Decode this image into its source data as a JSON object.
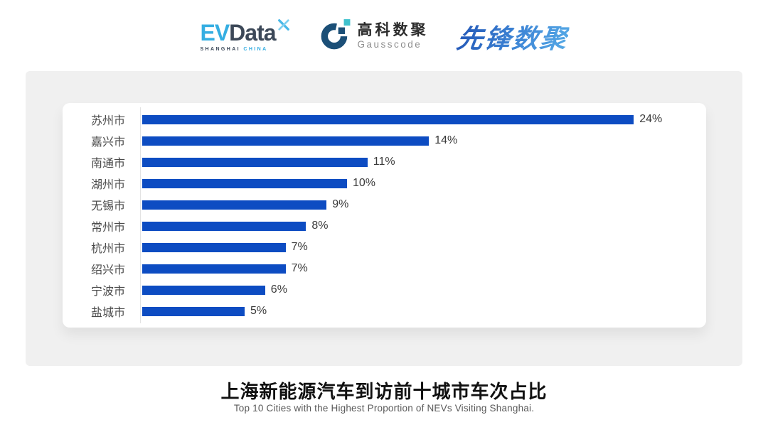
{
  "header": {
    "evdata": {
      "ev": "EV",
      "data": "Data",
      "sub_left": "SHANGHAI",
      "sub_right": "CHINA"
    },
    "gausscode": {
      "cn": "高科数聚",
      "en": "Gausscode"
    },
    "xianfeng": {
      "text": "先锋数聚"
    }
  },
  "chart_data": {
    "type": "bar",
    "orientation": "horizontal",
    "categories": [
      "苏州市",
      "嘉兴市",
      "南通市",
      "湖州市",
      "无锡市",
      "常州市",
      "杭州市",
      "绍兴市",
      "宁波市",
      "盐城市"
    ],
    "values": [
      24,
      14,
      11,
      10,
      9,
      8,
      7,
      7,
      6,
      5
    ],
    "value_labels": [
      "24%",
      "14%",
      "11%",
      "10%",
      "9%",
      "8%",
      "7%",
      "7%",
      "6%",
      "5%"
    ],
    "bar_color": "#0D4CC2",
    "xlim": [
      0,
      25
    ],
    "grid": false,
    "legend": "none",
    "title": "上海新能源汽车到访前十城市车次占比",
    "subtitle": "Top 10 Cities with the Highest Proportion of  NEVs Visiting Shanghai."
  },
  "colors": {
    "panel_bg": "#F0F0F0",
    "card_bg": "#FFFFFF",
    "bar_blue": "#0D4CC2",
    "evdata_light_blue": "#35AEE2",
    "evdata_dark": "#3C4858",
    "gausscode_navy": "#1B4F77",
    "gausscode_teal": "#3EC1CD",
    "xianfeng_blue": "#2F74CC"
  }
}
